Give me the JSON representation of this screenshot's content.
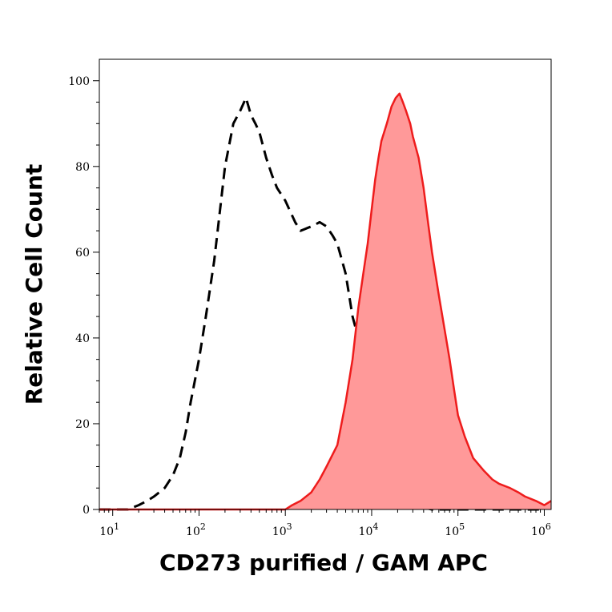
{
  "chart_data": {
    "type": "area",
    "xlabel": "CD273 purified / GAM APC",
    "ylabel": "Relative Cell Count",
    "x_scale": "log",
    "xlim": [
      7,
      1200000
    ],
    "ylim": [
      0,
      105
    ],
    "x_ticks": [
      {
        "base": "10",
        "exp": "1",
        "value": 10
      },
      {
        "base": "10",
        "exp": "2",
        "value": 100
      },
      {
        "base": "10",
        "exp": "3",
        "value": 1000
      },
      {
        "base": "10",
        "exp": "4",
        "value": 10000
      },
      {
        "base": "10",
        "exp": "5",
        "value": 100000
      },
      {
        "base": "10",
        "exp": "6",
        "value": 1000000
      }
    ],
    "y_ticks": [
      0,
      20,
      40,
      60,
      80,
      100
    ],
    "series": [
      {
        "style": "dashed",
        "color": "#000000",
        "x": [
          7,
          10,
          15,
          20,
          25,
          30,
          40,
          50,
          60,
          70,
          80,
          100,
          120,
          150,
          180,
          200,
          250,
          300,
          350,
          400,
          450,
          500,
          600,
          700,
          800,
          1000,
          1300,
          1500,
          2000,
          2500,
          3000,
          3500,
          4000,
          5000,
          6000,
          7000,
          8000,
          10000,
          12000,
          15000,
          20000,
          30000,
          50000,
          100000,
          300000,
          1000000
        ],
        "y": [
          0,
          0,
          0,
          1,
          2,
          3,
          5,
          8,
          12,
          18,
          25,
          35,
          45,
          58,
          72,
          80,
          90,
          93,
          96,
          92,
          90,
          88,
          82,
          78,
          75,
          72,
          67,
          65,
          66,
          67,
          66,
          64,
          62,
          55,
          45,
          40,
          35,
          25,
          18,
          10,
          5,
          1,
          0,
          0,
          0,
          0
        ]
      },
      {
        "style": "filled",
        "color": "#ee1c1c",
        "fill": "#ff9999",
        "x": [
          7,
          100,
          1000,
          1200,
          1500,
          2000,
          2500,
          3000,
          4000,
          5000,
          6000,
          7000,
          8000,
          9000,
          10000,
          11000,
          12000,
          13000,
          15000,
          17000,
          19000,
          21000,
          23000,
          25000,
          28000,
          30000,
          35000,
          40000,
          45000,
          50000,
          60000,
          70000,
          80000,
          90000,
          100000,
          120000,
          150000,
          200000,
          250000,
          300000,
          400000,
          500000,
          600000,
          800000,
          1000000,
          1200000
        ],
        "y": [
          0,
          0,
          0,
          1,
          2,
          4,
          7,
          10,
          15,
          25,
          35,
          47,
          55,
          62,
          70,
          77,
          82,
          86,
          90,
          94,
          96,
          97,
          95,
          93,
          90,
          87,
          82,
          75,
          67,
          60,
          50,
          42,
          35,
          28,
          22,
          17,
          12,
          9,
          7,
          6,
          5,
          4,
          3,
          2,
          1,
          2
        ]
      }
    ]
  }
}
